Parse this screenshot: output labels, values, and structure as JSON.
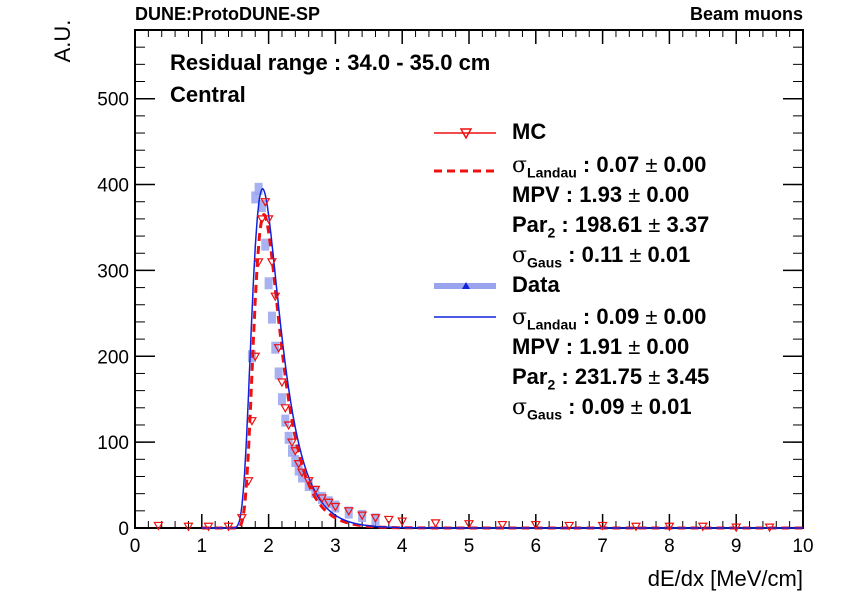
{
  "header": {
    "left": "DUNE:ProtoDUNE-SP",
    "right": "Beam muons"
  },
  "annotations": {
    "line1": "Residual range : 34.0 - 35.0 cm",
    "line2": "Central"
  },
  "legend": {
    "mc": {
      "label": "MC",
      "sigma_landau": "0.07",
      "sigma_landau_err": "0.00",
      "mpv": "1.93",
      "mpv_err": "0.00",
      "par2": "198.61",
      "par2_err": "3.37",
      "sigma_gaus": "0.11",
      "sigma_gaus_err": "0.01"
    },
    "data": {
      "label": "Data",
      "sigma_landau": "0.09",
      "sigma_landau_err": "0.00",
      "mpv": "1.91",
      "mpv_err": "0.00",
      "par2": "231.75",
      "par2_err": "3.45",
      "sigma_gaus": "0.09",
      "sigma_gaus_err": "0.01"
    }
  },
  "text": {
    "sigma": "σ",
    "landau": "Landau",
    "gaus": "Gaus",
    "mpv": "MPV",
    "par": "Par",
    "par_sub": "2",
    "pm": "±"
  },
  "colors": {
    "mc": "#ee1111",
    "data_fill": "#9aa4ee",
    "data_line": "#1122dd"
  },
  "chart_data": {
    "type": "line",
    "xlabel": "dE/dx [MeV/cm]",
    "ylabel": "A.U.",
    "xlim": [
      0,
      10
    ],
    "ylim": [
      0,
      580
    ],
    "xticks": [
      0,
      1,
      2,
      3,
      4,
      5,
      6,
      7,
      8,
      9,
      10
    ],
    "yticks": [
      0,
      100,
      200,
      300,
      400,
      500
    ],
    "grid": false,
    "legend_position": "right",
    "series": [
      {
        "name": "MC",
        "kind": "points",
        "x": [
          0.35,
          0.8,
          1.1,
          1.4,
          1.6,
          1.7,
          1.75,
          1.8,
          1.85,
          1.9,
          1.95,
          2.0,
          2.05,
          2.1,
          2.15,
          2.2,
          2.25,
          2.3,
          2.35,
          2.4,
          2.45,
          2.5,
          2.6,
          2.7,
          2.8,
          2.9,
          3.0,
          3.2,
          3.4,
          3.6,
          3.8,
          4.0,
          4.5,
          5.0,
          5.5,
          6.0,
          6.5,
          7.0,
          7.5,
          8.0,
          8.5,
          9.0,
          9.5
        ],
        "y": [
          3,
          2,
          2,
          2,
          12,
          55,
          125,
          200,
          310,
          360,
          380,
          360,
          310,
          270,
          210,
          170,
          140,
          120,
          100,
          90,
          75,
          65,
          55,
          45,
          35,
          30,
          25,
          20,
          15,
          12,
          10,
          8,
          6,
          5,
          4,
          4,
          3,
          3,
          2,
          2,
          2,
          1,
          1
        ]
      },
      {
        "name": "MC fit",
        "kind": "dashed",
        "sigma_landau": 0.07,
        "mpv": 1.93,
        "par2": 198.61,
        "sigma_gaus": 0.11,
        "peak": 365
      },
      {
        "name": "Data",
        "kind": "bars",
        "x": [
          1.75,
          1.8,
          1.85,
          1.9,
          1.95,
          2.0,
          2.05,
          2.1,
          2.15,
          2.2,
          2.25,
          2.3,
          2.35,
          2.4,
          2.45,
          2.5,
          2.6,
          2.7,
          2.8,
          2.9,
          3.0,
          3.2,
          3.4,
          3.6
        ],
        "y": [
          200,
          385,
          395,
          375,
          330,
          285,
          245,
          210,
          180,
          150,
          125,
          105,
          90,
          78,
          68,
          60,
          50,
          42,
          35,
          30,
          25,
          18,
          14,
          10
        ]
      },
      {
        "name": "Data fit",
        "kind": "solid",
        "sigma_landau": 0.09,
        "mpv": 1.91,
        "par2": 231.75,
        "sigma_gaus": 0.09,
        "peak": 395
      }
    ]
  }
}
